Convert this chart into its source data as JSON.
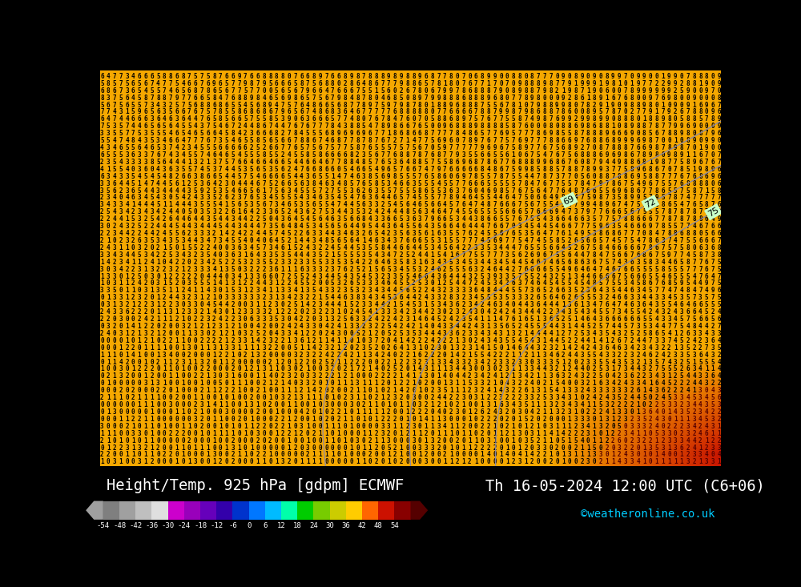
{
  "title_left": "Height/Temp. 925 hPa [gdpm] ECMWF",
  "title_right": "Th 16-05-2024 12:00 UTC (C6+06)",
  "credit": "©weatheronline.co.uk",
  "colorbar_levels": [
    -54,
    -48,
    -42,
    -36,
    -30,
    -24,
    -18,
    -12,
    -6,
    0,
    6,
    12,
    18,
    24,
    30,
    36,
    42,
    48,
    54
  ],
  "footer_bg": "#000000",
  "title_color": "#ffffff",
  "credit_color": "#00ccff",
  "colorbar_colors": [
    "#7f7f7f",
    "#a0a0a0",
    "#bfbfbf",
    "#dfdfdf",
    "#cc00cc",
    "#9900bb",
    "#6600bb",
    "#3300aa",
    "#0033cc",
    "#0077ff",
    "#00bbff",
    "#00ffaa",
    "#00cc00",
    "#77cc00",
    "#cccc00",
    "#ffcc00",
    "#ff6600",
    "#cc1100",
    "#880000"
  ],
  "bg_orange": "#f5a800",
  "bg_red": "#cc0000",
  "digit_color": "#000000",
  "contour_color": "#8888aa",
  "contour_label_bg": "#c8ffc8",
  "contour_label_color": "#000000",
  "figsize": [
    10.0,
    7.33
  ],
  "dpi": 100,
  "title_fontsize": 13.5,
  "credit_fontsize": 10,
  "digit_fontsize": 5.5
}
